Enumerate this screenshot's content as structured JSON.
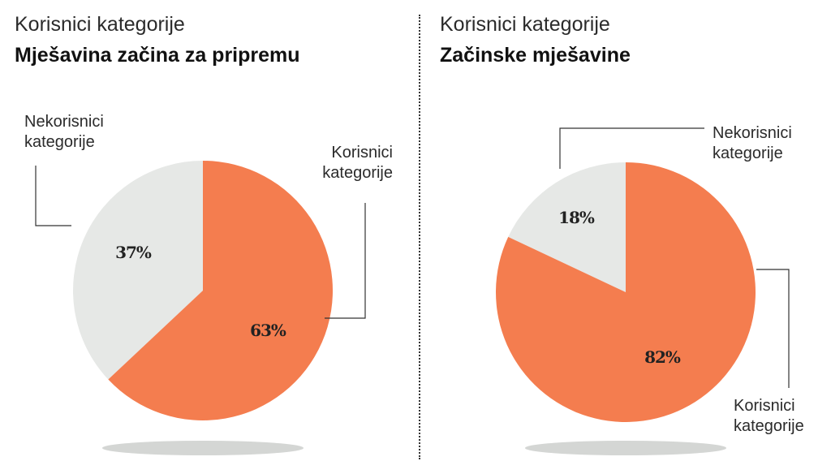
{
  "colors": {
    "users": "#f47d4f",
    "nonusers": "#e6e8e6",
    "shadow": "#d4d6d4"
  },
  "chart_data": [
    {
      "type": "pie",
      "title": "Korisnici kategorije",
      "subtitle": "Mješavina začina za pripremu",
      "slices": [
        {
          "label": "Nekorisnici kategorije",
          "label_lines": [
            "Nekorisnici",
            "kategorije"
          ],
          "value": 37,
          "display": "37%"
        },
        {
          "label": "Korisnici kategorije",
          "label_lines": [
            "Korisnici",
            "kategorije"
          ],
          "value": 63,
          "display": "63%"
        }
      ]
    },
    {
      "type": "pie",
      "title": "Korisnici kategorije",
      "subtitle": "Začinske mješavine",
      "slices": [
        {
          "label": "Nekorisnici kategorije",
          "label_lines": [
            "Nekorisnici",
            "kategorije"
          ],
          "value": 18,
          "display": "18%"
        },
        {
          "label": "Korisnici kategorije",
          "label_lines": [
            "Korisnici",
            "kategorije"
          ],
          "value": 82,
          "display": "82%"
        }
      ]
    }
  ]
}
